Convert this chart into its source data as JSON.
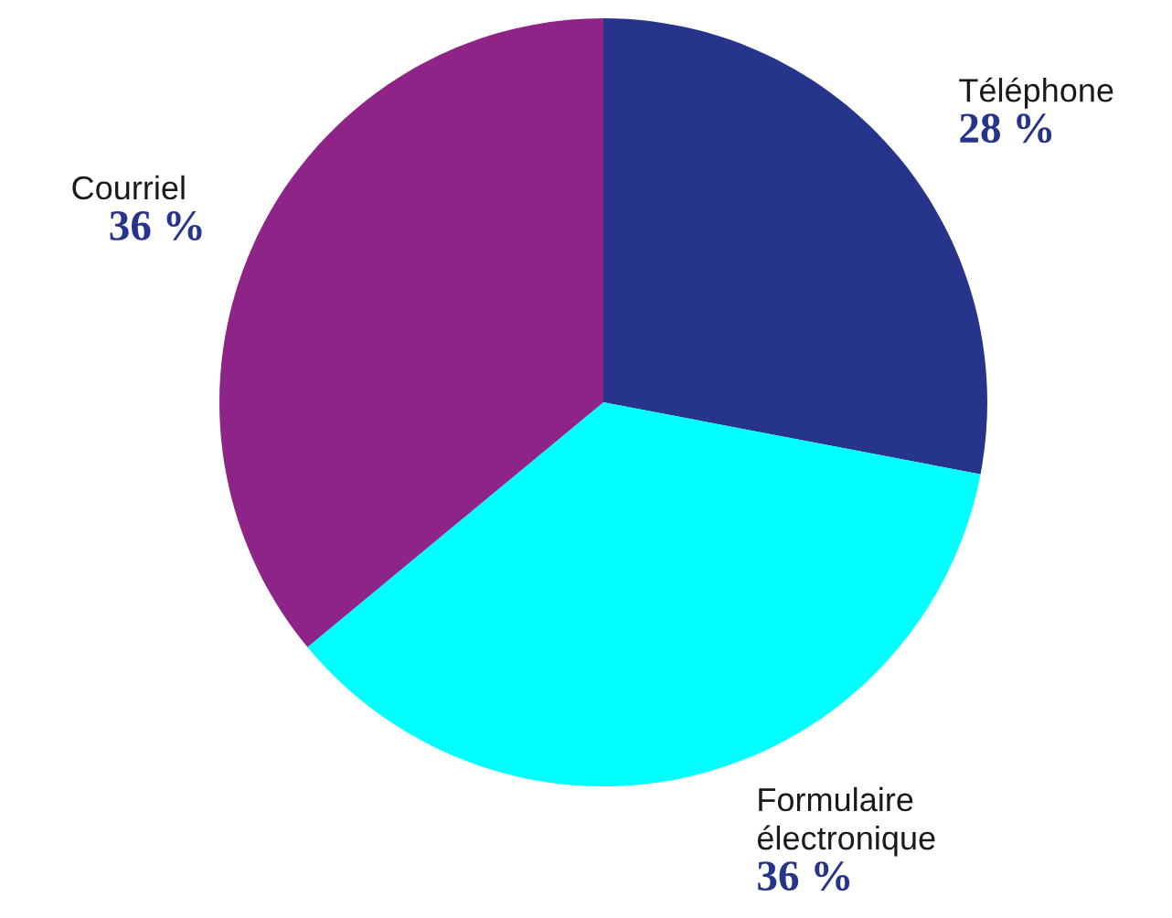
{
  "chart_data": {
    "type": "pie",
    "categories": [
      "Téléphone",
      "Formulaire\nélectronique",
      "Courriel"
    ],
    "values": [
      28,
      36,
      36
    ],
    "colors": [
      "#27348b",
      "#00ffff",
      "#8e2487"
    ],
    "value_labels": [
      "28 %",
      "36 %",
      "36 %"
    ]
  }
}
